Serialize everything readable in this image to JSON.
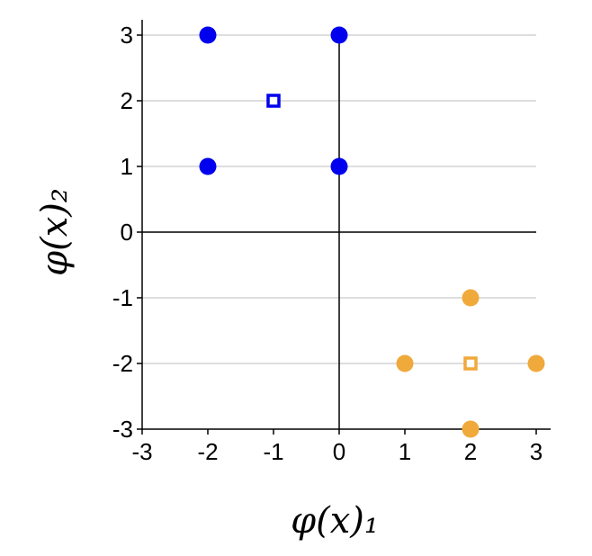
{
  "chart_data": {
    "type": "scatter",
    "title": "",
    "xlabel": "φ(x)₁",
    "ylabel": "φ(x)₂",
    "xlim": [
      -3,
      3
    ],
    "ylim": [
      -3,
      3
    ],
    "xticks": [
      -3,
      -2,
      -1,
      0,
      1,
      2,
      3
    ],
    "yticks": [
      -3,
      -2,
      -1,
      0,
      1,
      2,
      3
    ],
    "xtick_labels": [
      "-3",
      "-2",
      "-1",
      "0",
      "1",
      "2",
      "3"
    ],
    "ytick_labels": [
      "-3",
      "-2",
      "-1",
      "0",
      "1",
      "2",
      "3"
    ],
    "grid": "horizontal",
    "series": [
      {
        "marker": "circle",
        "color": "#0000ee",
        "points": [
          [
            -2,
            3
          ],
          [
            0,
            3
          ],
          [
            -2,
            1
          ],
          [
            0,
            1
          ]
        ]
      },
      {
        "marker": "hollow-square",
        "color": "#0000ee",
        "points": [
          [
            -1,
            2
          ]
        ]
      },
      {
        "marker": "circle",
        "color": "#f0a93b",
        "points": [
          [
            2,
            -1
          ],
          [
            1,
            -2
          ],
          [
            3,
            -2
          ],
          [
            2,
            -3
          ]
        ]
      },
      {
        "marker": "hollow-square",
        "color": "#f0a93b",
        "points": [
          [
            2,
            -2
          ]
        ]
      }
    ]
  }
}
